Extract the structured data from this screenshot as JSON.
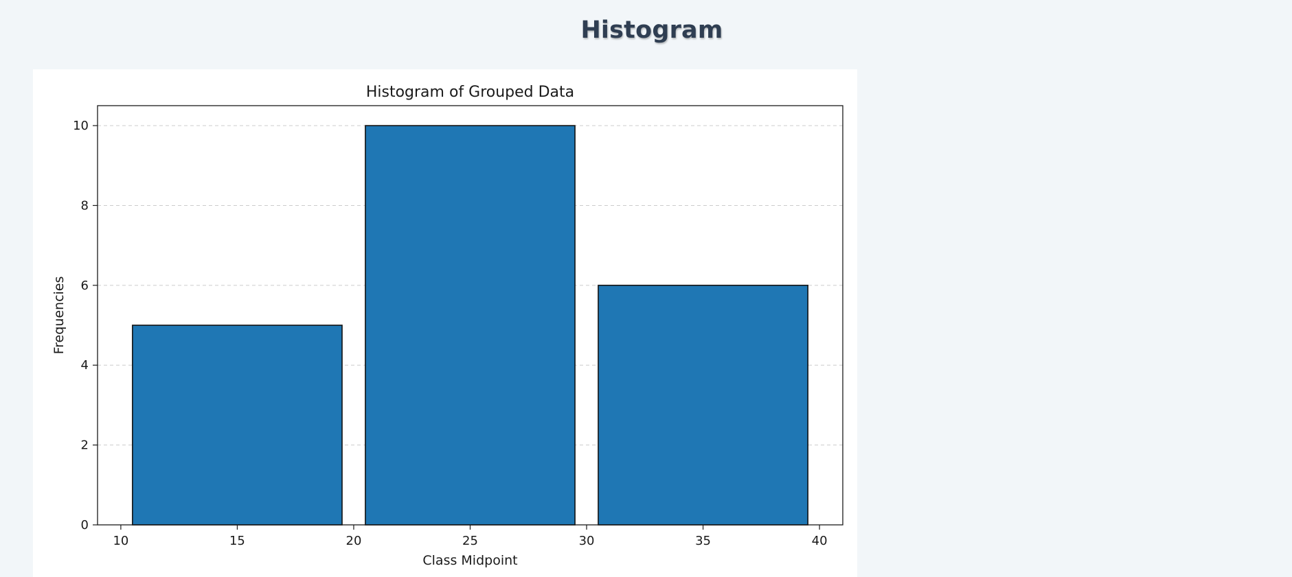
{
  "page": {
    "title": "Histogram"
  },
  "chart_data": {
    "type": "bar",
    "title": "Histogram of Grouped Data",
    "xlabel": "Class Midpoint",
    "ylabel": "Frequencies",
    "categories": [
      "15",
      "25",
      "35"
    ],
    "x": [
      15,
      25,
      35
    ],
    "bar_width": 9,
    "values": [
      5,
      10,
      6
    ],
    "xlim": [
      9,
      41
    ],
    "ylim": [
      0,
      10.5
    ],
    "xticks": [
      10,
      15,
      20,
      25,
      30,
      35,
      40
    ],
    "yticks": [
      0,
      2,
      4,
      6,
      8,
      10
    ],
    "grid": "y-axis dashed",
    "legend": "none",
    "colors": {
      "bar_fill": "#1f77b4",
      "bar_edge": "#111111",
      "grid": "#cccccc",
      "axes": "#1a1a1a"
    }
  }
}
